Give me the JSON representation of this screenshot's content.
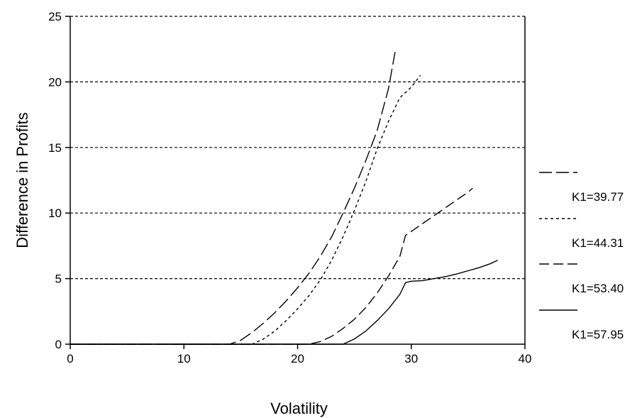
{
  "chart_data": {
    "type": "line",
    "title": "",
    "xlabel": "Volatility",
    "ylabel": "Difference in Profits",
    "xlim": [
      0,
      40
    ],
    "ylim": [
      0,
      25
    ],
    "xticks": [
      0,
      10,
      20,
      30,
      40
    ],
    "yticks": [
      0,
      5,
      10,
      15,
      20,
      25
    ],
    "grid": "horizontal dashed at y-ticks",
    "legend_placement": "right",
    "series": [
      {
        "name": "K1=39.77",
        "line_style": "long-dash",
        "color": "#000000",
        "points": [
          [
            0,
            0
          ],
          [
            14,
            0
          ],
          [
            15,
            0.3
          ],
          [
            16,
            0.9
          ],
          [
            17,
            1.6
          ],
          [
            18,
            2.4
          ],
          [
            19,
            3.3
          ],
          [
            20,
            4.3
          ],
          [
            21,
            5.4
          ],
          [
            22,
            6.7
          ],
          [
            23,
            8.2
          ],
          [
            24,
            10.0
          ],
          [
            25,
            11.9
          ],
          [
            26,
            14.0
          ],
          [
            27,
            16.3
          ],
          [
            28,
            19.5
          ],
          [
            28.6,
            22.4
          ]
        ]
      },
      {
        "name": "K1=44.31",
        "line_style": "short-dash",
        "color": "#000000",
        "points": [
          [
            0,
            0
          ],
          [
            16,
            0
          ],
          [
            17,
            0.4
          ],
          [
            18,
            1.0
          ],
          [
            19,
            1.8
          ],
          [
            20,
            2.7
          ],
          [
            21,
            3.7
          ],
          [
            22,
            4.9
          ],
          [
            23,
            6.4
          ],
          [
            24,
            8.2
          ],
          [
            25,
            10.2
          ],
          [
            26,
            12.4
          ],
          [
            27,
            14.9
          ],
          [
            28,
            17.0
          ],
          [
            29,
            18.8
          ],
          [
            30,
            19.6
          ],
          [
            30.8,
            20.5
          ]
        ]
      },
      {
        "name": "K1=53.40",
        "line_style": "dash",
        "color": "#000000",
        "points": [
          [
            0,
            0
          ],
          [
            21,
            0
          ],
          [
            22,
            0.2
          ],
          [
            23,
            0.6
          ],
          [
            24,
            1.2
          ],
          [
            25,
            1.9
          ],
          [
            26,
            2.8
          ],
          [
            27,
            3.9
          ],
          [
            28,
            5.2
          ],
          [
            29,
            6.7
          ],
          [
            29.5,
            8.3
          ],
          [
            30,
            8.6
          ],
          [
            31,
            9.2
          ],
          [
            32,
            9.8
          ],
          [
            33,
            10.4
          ],
          [
            34,
            11.0
          ],
          [
            35,
            11.6
          ],
          [
            35.4,
            11.9
          ]
        ]
      },
      {
        "name": "K1=57.95",
        "line_style": "solid",
        "color": "#000000",
        "points": [
          [
            0,
            0
          ],
          [
            24,
            0
          ],
          [
            25,
            0.4
          ],
          [
            26,
            1.0
          ],
          [
            27,
            1.8
          ],
          [
            28,
            2.7
          ],
          [
            29,
            3.8
          ],
          [
            29.5,
            4.7
          ],
          [
            30,
            4.8
          ],
          [
            31,
            4.85
          ],
          [
            32,
            5.0
          ],
          [
            33,
            5.15
          ],
          [
            34,
            5.35
          ],
          [
            35,
            5.6
          ],
          [
            36,
            5.85
          ],
          [
            37,
            6.15
          ],
          [
            37.6,
            6.4
          ]
        ]
      }
    ]
  }
}
